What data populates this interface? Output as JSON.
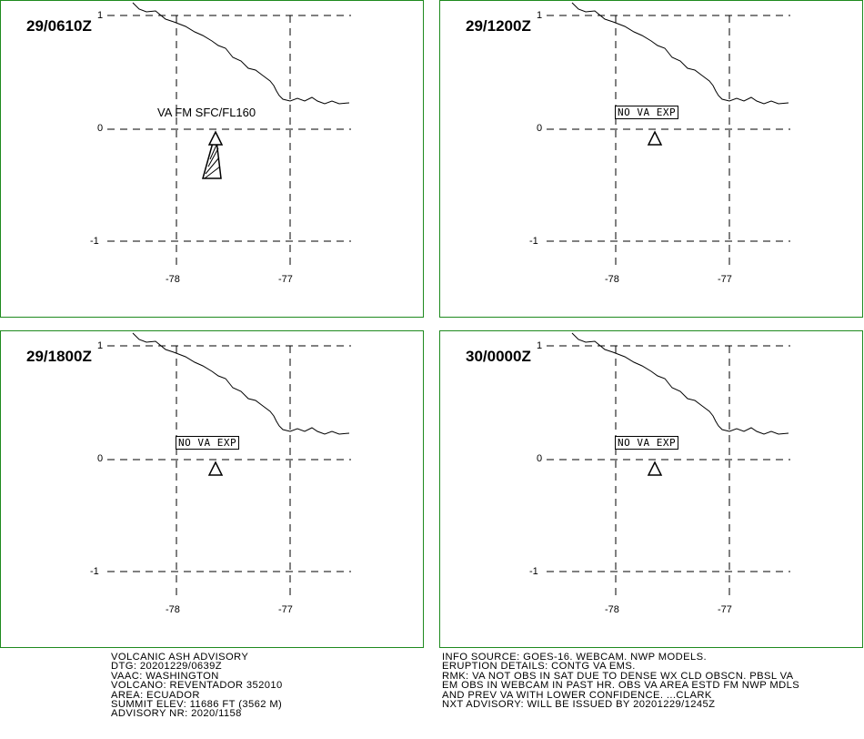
{
  "panels": [
    {
      "time": "29/0610Z",
      "annotation": "VA FM SFC/FL160",
      "annotation_type": "ash_area",
      "lat_labels": [
        "1",
        "0",
        "-1"
      ],
      "lon_labels": [
        "-78",
        "-77"
      ]
    },
    {
      "time": "29/1200Z",
      "annotation": "NO VA EXP",
      "annotation_type": "box",
      "lat_labels": [
        "1",
        "0",
        "-1"
      ],
      "lon_labels": [
        "-78",
        "-77"
      ]
    },
    {
      "time": "29/1800Z",
      "annotation": "NO VA EXP",
      "annotation_type": "box",
      "lat_labels": [
        "1",
        "0",
        "-1"
      ],
      "lon_labels": [
        "-78",
        "-77"
      ]
    },
    {
      "time": "30/0000Z",
      "annotation": "NO VA EXP",
      "annotation_type": "box",
      "lat_labels": [
        "1",
        "0",
        "-1"
      ],
      "lon_labels": [
        "-78",
        "-77"
      ]
    }
  ],
  "advisory_left": [
    "VOLCANIC ASH ADVISORY",
    "DTG: 20201229/0639Z",
    "VAAC: WASHINGTON",
    "VOLCANO: REVENTADOR 352010",
    "AREA: ECUADOR",
    "SUMMIT ELEV: 11686 FT (3562 M)",
    "ADVISORY NR: 2020/1158"
  ],
  "advisory_right": [
    "INFO SOURCE: GOES-16. WEBCAM. NWP MODELS.",
    "ERUPTION DETAILS: CONTG VA EMS.",
    "RMK: VA NOT OBS IN SAT DUE TO DENSE WX CLD OBSCN. PBSL VA",
    "EM OBS IN WEBCAM IN PAST HR. OBS VA AREA ESTD FM NWP MDLS",
    "AND PREV VA WITH LOWER CONFIDENCE. ...CLARK",
    "NXT ADVISORY: WILL BE ISSUED BY 20201229/1245Z"
  ],
  "colors": {
    "panel_border": "#1e8a1e",
    "lines": "#000000",
    "background": "#ffffff"
  },
  "icons": {
    "volcano": "volcano-triangle-icon"
  }
}
